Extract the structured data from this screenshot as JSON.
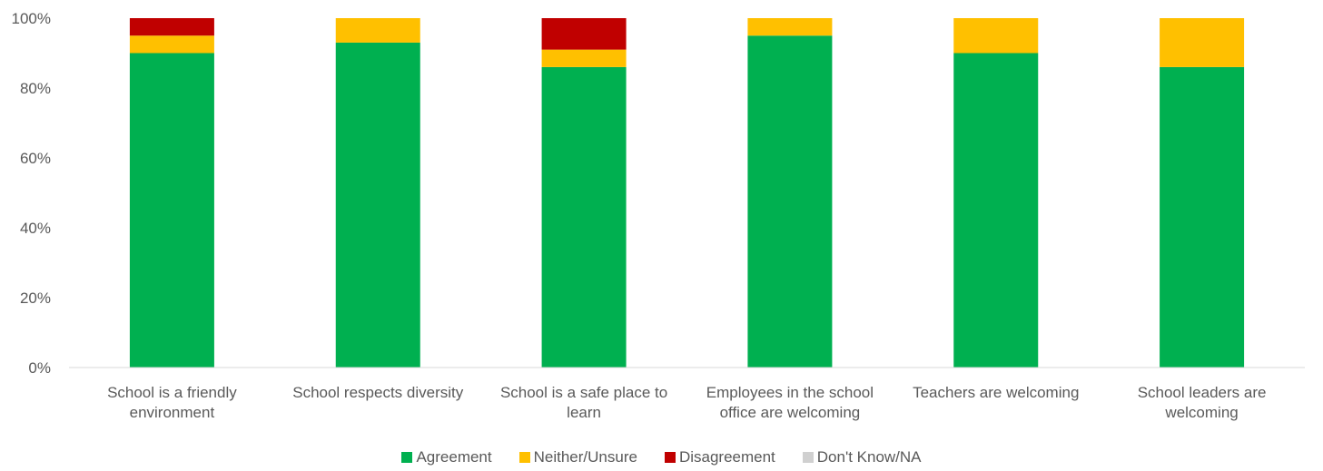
{
  "chart_data": {
    "type": "bar",
    "stacked": true,
    "categories": [
      [
        "School is a friendly",
        "environment"
      ],
      [
        "School respects diversity"
      ],
      [
        "School is a safe place to",
        "learn"
      ],
      [
        "Employees in the school",
        "office are welcoming"
      ],
      [
        "Teachers are welcoming"
      ],
      [
        "School leaders are",
        "welcoming"
      ]
    ],
    "series": [
      {
        "name": "Agreement",
        "color": "#00B050",
        "values": [
          90,
          93,
          86,
          95,
          90,
          86
        ]
      },
      {
        "name": "Neither/Unsure",
        "color": "#FFC000",
        "values": [
          5,
          7,
          5,
          5,
          10,
          14
        ]
      },
      {
        "name": "Disagreement",
        "color": "#C00000",
        "values": [
          5,
          0,
          9,
          0,
          0,
          0
        ]
      },
      {
        "name": "Don't Know/NA",
        "color": "#D0D0D0",
        "values": [
          0,
          0,
          0,
          0,
          0,
          0
        ]
      }
    ],
    "ylim": [
      0,
      100
    ],
    "yticks": [
      "0%",
      "20%",
      "40%",
      "60%",
      "80%",
      "100%"
    ],
    "legend_position": "bottom",
    "grid": false
  }
}
